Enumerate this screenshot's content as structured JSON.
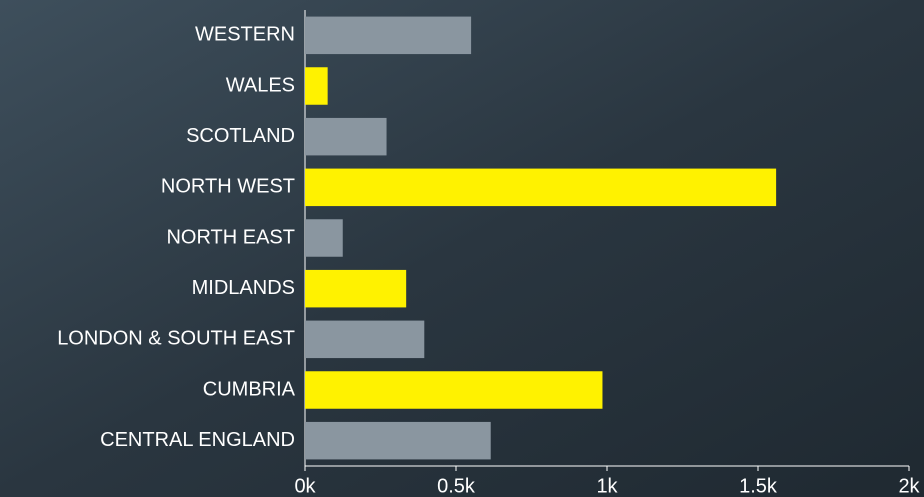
{
  "chart_data": {
    "type": "bar",
    "orientation": "horizontal",
    "categories": [
      "WESTERN",
      "WALES",
      "SCOTLAND",
      "NORTH WEST",
      "NORTH EAST",
      "MIDLANDS",
      "LONDON & SOUTH EAST",
      "CUMBRIA",
      "CENTRAL ENGLAND"
    ],
    "values": [
      550,
      75,
      270,
      1560,
      125,
      335,
      395,
      985,
      615
    ],
    "colors": [
      "#8a96a0",
      "#fff200",
      "#8a96a0",
      "#fff200",
      "#8a96a0",
      "#fff200",
      "#8a96a0",
      "#fff200",
      "#8a96a0"
    ],
    "xlim": [
      0,
      2000
    ],
    "xticks": [
      {
        "value": 0,
        "label": "0k"
      },
      {
        "value": 500,
        "label": "0.5k"
      },
      {
        "value": 1000,
        "label": "1k"
      },
      {
        "value": 1500,
        "label": "1.5k"
      },
      {
        "value": 2000,
        "label": "2k"
      }
    ],
    "grid": false
  }
}
